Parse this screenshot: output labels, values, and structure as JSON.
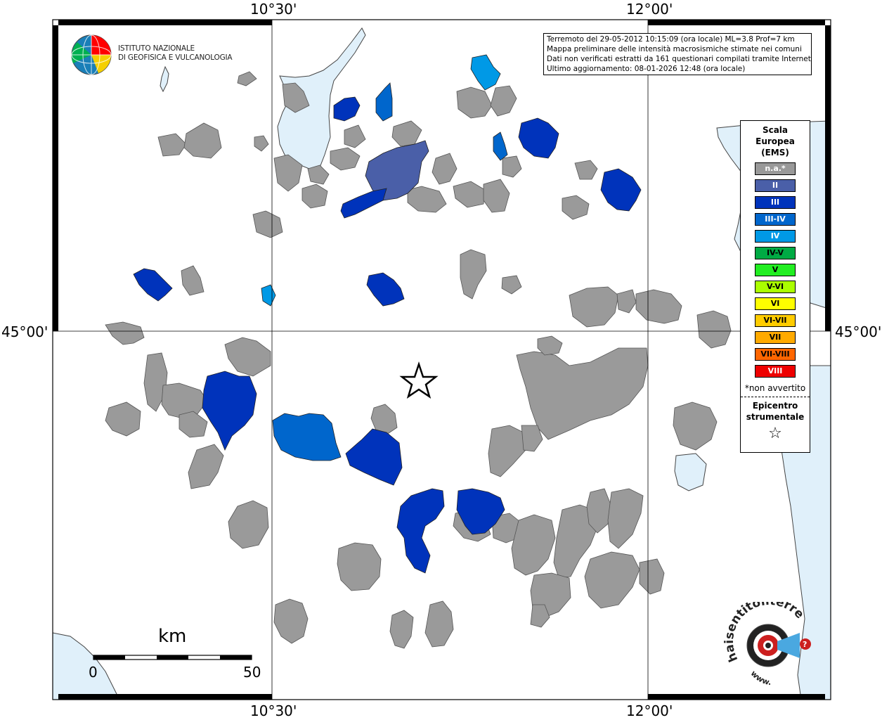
{
  "coords": {
    "top_left": "10°30'",
    "top_right": "12°00'",
    "bottom_left": "10°30'",
    "bottom_right": "12°00'",
    "left_lat": "45°00'",
    "right_lat": "45°00'"
  },
  "info": {
    "line1": "Terremoto del 29-05-2012 10:15:09 (ora locale) ML=3.8 Prof=7 km",
    "line2": "Mappa preliminare delle intensità macrosismiche stimate nei comuni",
    "line3": "Dati non verificati estratti da 161 questionari compilati tramite Internet.",
    "line4": "Ultimo aggiornamento: 08-01-2026 12:48 (ora locale)"
  },
  "logo": {
    "line1": "ISTITUTO NAZIONALE",
    "line2": "DI GEOFISICA E VULCANOLOGIA"
  },
  "legend": {
    "title1": "Scala",
    "title2": "Europea",
    "title3": "(EMS)",
    "items": [
      {
        "label": "n.a.*",
        "color": "#999999",
        "text_color": "#ffffff"
      },
      {
        "label": "II",
        "color": "#4a5fa8",
        "text_color": "#ffffff"
      },
      {
        "label": "III",
        "color": "#0033bb",
        "text_color": "#ffffff"
      },
      {
        "label": "III-IV",
        "color": "#0066cc",
        "text_color": "#ffffff"
      },
      {
        "label": "IV",
        "color": "#0099e6",
        "text_color": "#ffffff"
      },
      {
        "label": "IV-V",
        "color": "#00aa44",
        "text_color": "#000000"
      },
      {
        "label": "V",
        "color": "#22ee22",
        "text_color": "#000000"
      },
      {
        "label": "V-VI",
        "color": "#aaff00",
        "text_color": "#000000"
      },
      {
        "label": "VI",
        "color": "#ffff00",
        "text_color": "#000000"
      },
      {
        "label": "VI-VII",
        "color": "#ffcc00",
        "text_color": "#000000"
      },
      {
        "label": "VII",
        "color": "#ffaa00",
        "text_color": "#000000"
      },
      {
        "label": "VII-VIII",
        "color": "#ff6600",
        "text_color": "#000000"
      },
      {
        "label": "VIII",
        "color": "#ee0000",
        "text_color": "#ffffff"
      }
    ],
    "note": "*non avvertito",
    "epi1": "Epicentro",
    "epi2": "strumentale",
    "star": "☆"
  },
  "scalebar": {
    "unit": "km",
    "min": "0",
    "max": "50"
  },
  "brand": {
    "text": "haisentitoilterremoto.it",
    "www": "www."
  }
}
